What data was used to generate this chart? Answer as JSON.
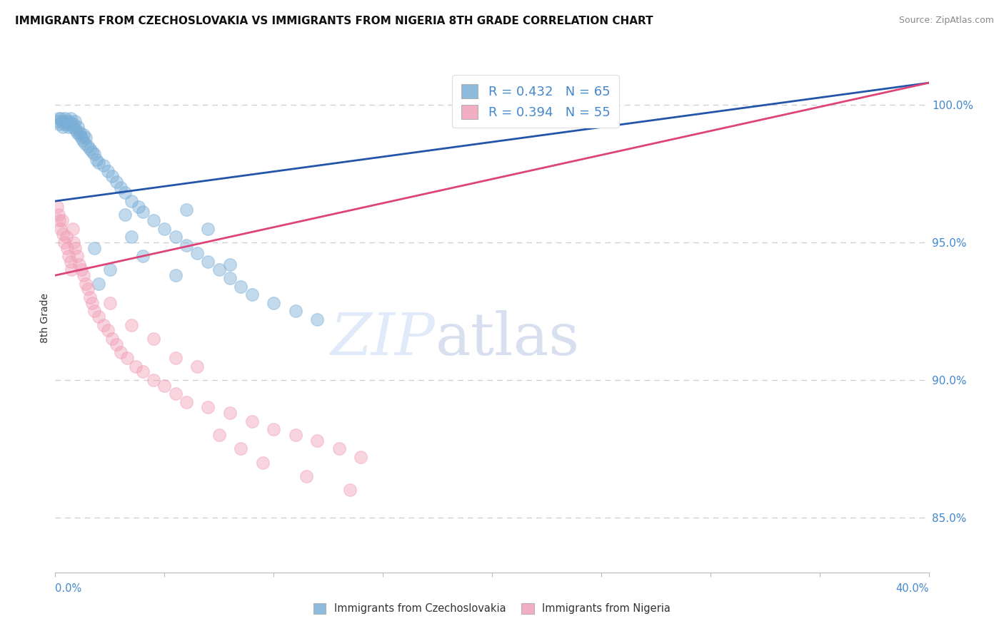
{
  "title": "IMMIGRANTS FROM CZECHOSLOVAKIA VS IMMIGRANTS FROM NIGERIA 8TH GRADE CORRELATION CHART",
  "source": "Source: ZipAtlas.com",
  "ylabel": "8th Grade",
  "xlim": [
    0.0,
    40.0
  ],
  "ylim": [
    83.0,
    101.5
  ],
  "yticks": [
    85.0,
    90.0,
    95.0,
    100.0
  ],
  "ytick_labels": [
    "85.0%",
    "90.0%",
    "95.0%",
    "100.0%"
  ],
  "legend_blue": "R = 0.432   N = 65",
  "legend_pink": "R = 0.394   N = 55",
  "legend_label_blue": "Immigrants from Czechoslovakia",
  "legend_label_pink": "Immigrants from Nigeria",
  "blue_color": "#7aaed6",
  "pink_color": "#f0a0b8",
  "blue_line_color": "#2255aa",
  "pink_line_color": "#dd4477",
  "blue_scatter": [
    [
      0.1,
      99.4
    ],
    [
      0.15,
      99.5
    ],
    [
      0.2,
      99.3
    ],
    [
      0.25,
      99.5
    ],
    [
      0.3,
      99.4
    ],
    [
      0.35,
      99.2
    ],
    [
      0.4,
      99.3
    ],
    [
      0.45,
      99.5
    ],
    [
      0.5,
      99.4
    ],
    [
      0.55,
      99.3
    ],
    [
      0.6,
      99.2
    ],
    [
      0.65,
      99.4
    ],
    [
      0.7,
      99.5
    ],
    [
      0.75,
      99.3
    ],
    [
      0.8,
      99.2
    ],
    [
      0.85,
      99.3
    ],
    [
      0.9,
      99.4
    ],
    [
      0.95,
      99.1
    ],
    [
      1.0,
      99.0
    ],
    [
      1.05,
      99.2
    ],
    [
      1.1,
      98.9
    ],
    [
      1.15,
      99.0
    ],
    [
      1.2,
      98.8
    ],
    [
      1.25,
      98.7
    ],
    [
      1.3,
      98.9
    ],
    [
      1.35,
      98.6
    ],
    [
      1.4,
      98.8
    ],
    [
      1.5,
      98.5
    ],
    [
      1.6,
      98.4
    ],
    [
      1.7,
      98.3
    ],
    [
      1.8,
      98.2
    ],
    [
      1.9,
      98.0
    ],
    [
      2.0,
      97.9
    ],
    [
      2.2,
      97.8
    ],
    [
      2.4,
      97.6
    ],
    [
      2.6,
      97.4
    ],
    [
      2.8,
      97.2
    ],
    [
      3.0,
      97.0
    ],
    [
      3.2,
      96.8
    ],
    [
      3.5,
      96.5
    ],
    [
      3.8,
      96.3
    ],
    [
      4.0,
      96.1
    ],
    [
      4.5,
      95.8
    ],
    [
      5.0,
      95.5
    ],
    [
      5.5,
      95.2
    ],
    [
      6.0,
      94.9
    ],
    [
      6.5,
      94.6
    ],
    [
      7.0,
      94.3
    ],
    [
      7.5,
      94.0
    ],
    [
      8.0,
      93.7
    ],
    [
      8.5,
      93.4
    ],
    [
      9.0,
      93.1
    ],
    [
      10.0,
      92.8
    ],
    [
      11.0,
      92.5
    ],
    [
      12.0,
      92.2
    ],
    [
      3.5,
      95.2
    ],
    [
      4.0,
      94.5
    ],
    [
      2.0,
      93.5
    ],
    [
      8.0,
      94.2
    ],
    [
      1.8,
      94.8
    ],
    [
      2.5,
      94.0
    ],
    [
      5.5,
      93.8
    ],
    [
      7.0,
      95.5
    ],
    [
      3.2,
      96.0
    ],
    [
      6.0,
      96.2
    ]
  ],
  "pink_scatter": [
    [
      0.1,
      96.3
    ],
    [
      0.15,
      96.0
    ],
    [
      0.2,
      95.8
    ],
    [
      0.25,
      95.5
    ],
    [
      0.3,
      95.8
    ],
    [
      0.35,
      95.3
    ],
    [
      0.4,
      95.0
    ],
    [
      0.5,
      95.2
    ],
    [
      0.55,
      94.8
    ],
    [
      0.6,
      94.5
    ],
    [
      0.7,
      94.3
    ],
    [
      0.75,
      94.0
    ],
    [
      0.8,
      95.5
    ],
    [
      0.85,
      95.0
    ],
    [
      0.9,
      94.8
    ],
    [
      1.0,
      94.5
    ],
    [
      1.1,
      94.2
    ],
    [
      1.2,
      94.0
    ],
    [
      1.3,
      93.8
    ],
    [
      1.4,
      93.5
    ],
    [
      1.5,
      93.3
    ],
    [
      1.6,
      93.0
    ],
    [
      1.7,
      92.8
    ],
    [
      1.8,
      92.5
    ],
    [
      2.0,
      92.3
    ],
    [
      2.2,
      92.0
    ],
    [
      2.4,
      91.8
    ],
    [
      2.6,
      91.5
    ],
    [
      2.8,
      91.3
    ],
    [
      3.0,
      91.0
    ],
    [
      3.3,
      90.8
    ],
    [
      3.7,
      90.5
    ],
    [
      4.0,
      90.3
    ],
    [
      4.5,
      90.0
    ],
    [
      5.0,
      89.8
    ],
    [
      5.5,
      89.5
    ],
    [
      6.0,
      89.2
    ],
    [
      7.0,
      89.0
    ],
    [
      8.0,
      88.8
    ],
    [
      9.0,
      88.5
    ],
    [
      10.0,
      88.2
    ],
    [
      11.0,
      88.0
    ],
    [
      12.0,
      87.8
    ],
    [
      13.0,
      87.5
    ],
    [
      14.0,
      87.2
    ],
    [
      5.5,
      90.8
    ],
    [
      6.5,
      90.5
    ],
    [
      4.5,
      91.5
    ],
    [
      3.5,
      92.0
    ],
    [
      2.5,
      92.8
    ],
    [
      7.5,
      88.0
    ],
    [
      8.5,
      87.5
    ],
    [
      9.5,
      87.0
    ],
    [
      11.5,
      86.5
    ],
    [
      13.5,
      86.0
    ]
  ],
  "blue_trend_x": [
    0.0,
    40.0
  ],
  "blue_trend_y": [
    96.5,
    100.8
  ],
  "pink_trend_x": [
    0.0,
    40.0
  ],
  "pink_trend_y": [
    93.8,
    100.8
  ]
}
